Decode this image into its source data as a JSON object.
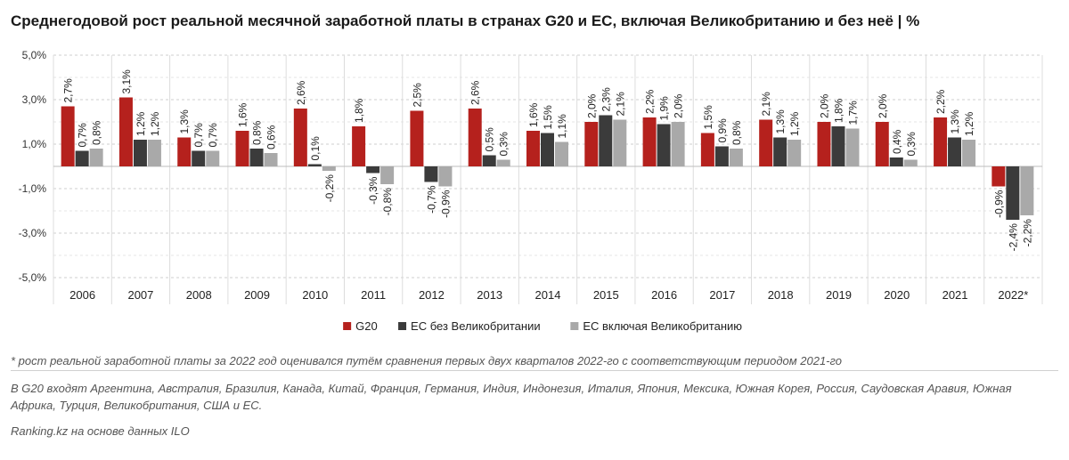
{
  "chart_data": {
    "type": "bar",
    "title": "Среднегодовой рост реальной месячной заработной платы в странах G20 и ЕС, включая Великобританию и без неё | %",
    "categories": [
      "2006",
      "2007",
      "2008",
      "2009",
      "2010",
      "2011",
      "2012",
      "2013",
      "2014",
      "2015",
      "2016",
      "2017",
      "2018",
      "2019",
      "2020",
      "2021",
      "2022*"
    ],
    "series": [
      {
        "name": "G20",
        "color": "#b5211d",
        "values": [
          2.7,
          3.1,
          1.3,
          1.6,
          2.6,
          1.8,
          2.5,
          2.6,
          1.6,
          2.0,
          2.2,
          1.5,
          2.1,
          2.0,
          2.0,
          2.2,
          -0.9
        ],
        "labels": [
          "2,7%",
          "3,1%",
          "1,3%",
          "1,6%",
          "2,6%",
          "1,8%",
          "2,5%",
          "2,6%",
          "1,6%",
          "2,0%",
          "2,2%",
          "1,5%",
          "2,1%",
          "2,0%",
          "2,0%",
          "2,2%",
          "-0,9%"
        ]
      },
      {
        "name": "ЕС без Великобритании",
        "color": "#3b3b3b",
        "values": [
          0.7,
          1.2,
          0.7,
          0.8,
          0.1,
          -0.3,
          -0.7,
          0.5,
          1.5,
          2.3,
          1.9,
          0.9,
          1.3,
          1.8,
          0.4,
          1.3,
          -2.4
        ],
        "labels": [
          "0,7%",
          "1,2%",
          "0,7%",
          "0,8%",
          "0,1%",
          "-0,3%",
          "-0,7%",
          "0,5%",
          "1,5%",
          "2,3%",
          "1,9%",
          "0,9%",
          "1,3%",
          "1,8%",
          "0,4%",
          "1,3%",
          "-2,4%"
        ]
      },
      {
        "name": "ЕС включая Великобританию",
        "color": "#a9a9a9",
        "values": [
          0.8,
          1.2,
          0.7,
          0.6,
          -0.2,
          -0.8,
          -0.9,
          0.3,
          1.1,
          2.1,
          2.0,
          0.8,
          1.2,
          1.7,
          0.3,
          1.2,
          -2.2
        ],
        "labels": [
          "0,8%",
          "1,2%",
          "0,7%",
          "0,6%",
          "-0,2%",
          "-0,8%",
          "-0,9%",
          "0,3%",
          "1,1%",
          "2,1%",
          "2,0%",
          "0,8%",
          "1,2%",
          "1,7%",
          "0,3%",
          "1,2%",
          "-2,2%"
        ]
      }
    ],
    "y_ticks": [
      5,
      3,
      1,
      -1,
      -3,
      -5
    ],
    "y_tick_labels": [
      "5,0%",
      "3,0%",
      "1,0%",
      "-1,0%",
      "-3,0%",
      "-5,0%"
    ],
    "ylim": [
      -5,
      5
    ],
    "grid": true,
    "legend_position": "bottom"
  },
  "notes": {
    "footnote": "* рост реальной заработной платы за 2022 год оценивался путём сравнения первых двух кварталов 2022-го с соответствующим периодом 2021-го",
    "g20_members": "В G20 входят Аргентина, Австралия, Бразилия, Канада, Китай, Франция, Германия, Индия, Индонезия, Италия, Япония, Мексика, Южная Корея, Россия, Саудовская Аравия, Южная Африка, Турция, Великобритания, США и ЕС.",
    "source": "Ranking.kz на основе данных ILO"
  }
}
